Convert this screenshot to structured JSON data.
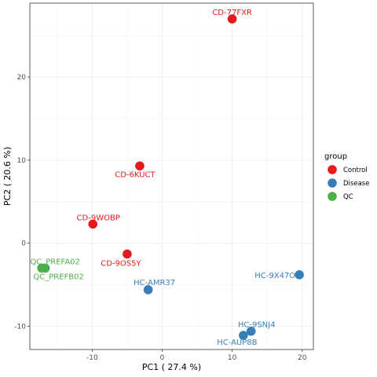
{
  "chart_data": {
    "type": "scatter",
    "xlabel": "PC1 ( 27.4 %)",
    "ylabel": "PC2 ( 20.6 %)",
    "xlim": [
      -18.9,
      21.6
    ],
    "ylim": [
      -12.8,
      28.9
    ],
    "xticks": [
      -10,
      0,
      10,
      20
    ],
    "yticks": [
      -10,
      0,
      10,
      20
    ],
    "grid": true,
    "legend": {
      "title": "group",
      "placement": "right",
      "entries": [
        {
          "name": "Control",
          "color": "#e41a1c"
        },
        {
          "name": "Disease",
          "color": "#377eb8"
        },
        {
          "name": "QC",
          "color": "#4daf4a"
        }
      ]
    },
    "points": [
      {
        "label": "CD-77FXR",
        "group": "Control",
        "x": 10.0,
        "y": 27.0
      },
      {
        "label": "CD-6KUCT",
        "group": "Control",
        "x": -3.2,
        "y": 9.3
      },
      {
        "label": "CD-9WOBP",
        "group": "Control",
        "x": -9.9,
        "y": 2.3
      },
      {
        "label": "CD-9OS5Y",
        "group": "Control",
        "x": -5.0,
        "y": -1.3
      },
      {
        "label": "HC-AMR37",
        "group": "Disease",
        "x": -2.0,
        "y": -5.6
      },
      {
        "label": "HC-9X47O",
        "group": "Disease",
        "x": 19.6,
        "y": -3.8
      },
      {
        "label": "HC-9SNJ4",
        "group": "Disease",
        "x": 12.7,
        "y": -10.6
      },
      {
        "label": "HC-AUP8B",
        "group": "Disease",
        "x": 11.6,
        "y": -11.1
      },
      {
        "label": "QC_PREFA02",
        "group": "QC",
        "x": -17.2,
        "y": -3.0
      },
      {
        "label": "QC_PREFB02",
        "group": "QC",
        "x": -16.7,
        "y": -3.0
      }
    ]
  }
}
